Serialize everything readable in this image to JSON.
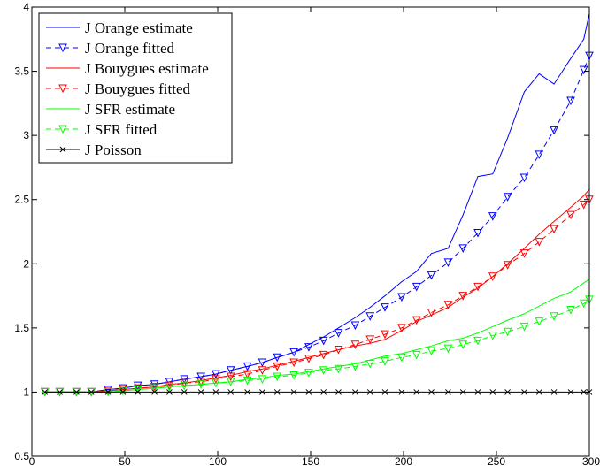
{
  "chart_data": {
    "type": "line",
    "title": "",
    "xlabel": "",
    "ylabel": "",
    "xlim": [
      0,
      300
    ],
    "ylim": [
      0.5,
      4
    ],
    "xticks": [
      0,
      50,
      100,
      150,
      200,
      250,
      300
    ],
    "yticks": [
      0.5,
      1,
      1.5,
      2,
      2.5,
      3,
      3.5,
      4
    ],
    "xtick_labels": [
      "0",
      "50",
      "100",
      "150",
      "200",
      "250",
      "300"
    ],
    "ytick_labels": [
      "0.5",
      "1",
      "1.5",
      "2",
      "2.5",
      "3",
      "3.5",
      "4"
    ],
    "grid": false,
    "legend_position": "top-left",
    "series": [
      {
        "name": "J Orange estimate",
        "color": "#0000ff",
        "line": "solid",
        "marker": "none",
        "x": [
          7,
          15,
          24,
          32,
          41,
          49,
          57,
          66,
          74,
          82,
          91,
          99,
          107,
          116,
          124,
          132,
          141,
          149,
          157,
          165,
          174,
          182,
          190,
          199,
          207,
          215,
          224,
          232,
          240,
          248,
          256,
          265,
          273,
          281,
          290,
          297,
          300
        ],
        "y": [
          1.0,
          1.0,
          1.0,
          1.0,
          1.02,
          1.03,
          1.05,
          1.06,
          1.08,
          1.1,
          1.12,
          1.14,
          1.17,
          1.2,
          1.23,
          1.27,
          1.31,
          1.37,
          1.43,
          1.5,
          1.58,
          1.66,
          1.75,
          1.86,
          1.94,
          2.08,
          2.12,
          2.38,
          2.68,
          2.7,
          2.98,
          3.34,
          3.48,
          3.4,
          3.6,
          3.75,
          3.95
        ]
      },
      {
        "name": "J Orange fitted",
        "color": "#0000ff",
        "line": "dashed",
        "marker": "triangle-down",
        "x": [
          7,
          15,
          24,
          32,
          41,
          49,
          57,
          66,
          74,
          82,
          91,
          99,
          107,
          116,
          124,
          132,
          141,
          149,
          157,
          165,
          174,
          182,
          190,
          199,
          207,
          215,
          224,
          232,
          240,
          248,
          256,
          265,
          273,
          281,
          290,
          297,
          300
        ],
        "y": [
          1.0,
          1.0,
          1.0,
          1.0,
          1.02,
          1.03,
          1.05,
          1.06,
          1.08,
          1.1,
          1.12,
          1.14,
          1.17,
          1.2,
          1.23,
          1.27,
          1.31,
          1.35,
          1.4,
          1.46,
          1.52,
          1.59,
          1.66,
          1.74,
          1.82,
          1.91,
          2.01,
          2.12,
          2.24,
          2.37,
          2.52,
          2.67,
          2.85,
          3.04,
          3.27,
          3.51,
          3.62
        ]
      },
      {
        "name": "J Bouygues estimate",
        "color": "#ff0000",
        "line": "solid",
        "marker": "none",
        "x": [
          7,
          15,
          24,
          32,
          41,
          49,
          57,
          66,
          74,
          82,
          91,
          99,
          107,
          116,
          124,
          132,
          141,
          149,
          157,
          165,
          174,
          182,
          190,
          199,
          207,
          215,
          224,
          232,
          240,
          248,
          256,
          265,
          273,
          281,
          290,
          297,
          300
        ],
        "y": [
          1.0,
          1.0,
          1.0,
          1.0,
          1.01,
          1.02,
          1.03,
          1.04,
          1.06,
          1.07,
          1.09,
          1.11,
          1.13,
          1.16,
          1.18,
          1.21,
          1.24,
          1.27,
          1.3,
          1.33,
          1.36,
          1.38,
          1.41,
          1.48,
          1.55,
          1.6,
          1.66,
          1.74,
          1.81,
          1.9,
          2.0,
          2.12,
          2.23,
          2.33,
          2.44,
          2.53,
          2.58
        ]
      },
      {
        "name": "J Bouygues fitted",
        "color": "#ff0000",
        "line": "dashed",
        "marker": "triangle-down",
        "x": [
          7,
          15,
          24,
          32,
          41,
          49,
          57,
          66,
          74,
          82,
          91,
          99,
          107,
          116,
          124,
          132,
          141,
          149,
          157,
          165,
          174,
          182,
          190,
          199,
          207,
          215,
          224,
          232,
          240,
          248,
          256,
          265,
          273,
          281,
          290,
          297,
          300
        ],
        "y": [
          1.0,
          1.0,
          1.0,
          1.0,
          1.01,
          1.02,
          1.03,
          1.04,
          1.05,
          1.07,
          1.08,
          1.1,
          1.12,
          1.14,
          1.17,
          1.2,
          1.23,
          1.26,
          1.29,
          1.33,
          1.37,
          1.41,
          1.45,
          1.5,
          1.56,
          1.62,
          1.68,
          1.75,
          1.82,
          1.9,
          1.99,
          2.08,
          2.17,
          2.27,
          2.38,
          2.46,
          2.5
        ]
      },
      {
        "name": "J SFR estimate",
        "color": "#00ff00",
        "line": "solid",
        "marker": "none",
        "x": [
          7,
          15,
          24,
          32,
          41,
          49,
          57,
          66,
          74,
          82,
          91,
          99,
          107,
          116,
          124,
          132,
          141,
          149,
          157,
          165,
          174,
          182,
          190,
          199,
          207,
          215,
          224,
          232,
          240,
          248,
          256,
          265,
          273,
          281,
          290,
          297,
          300
        ],
        "y": [
          1.0,
          1.0,
          1.0,
          1.0,
          1.0,
          1.01,
          1.02,
          1.03,
          1.04,
          1.05,
          1.06,
          1.07,
          1.08,
          1.1,
          1.11,
          1.13,
          1.14,
          1.16,
          1.18,
          1.2,
          1.22,
          1.25,
          1.28,
          1.3,
          1.33,
          1.36,
          1.4,
          1.42,
          1.46,
          1.51,
          1.56,
          1.61,
          1.67,
          1.73,
          1.78,
          1.85,
          1.88
        ]
      },
      {
        "name": "J SFR fitted",
        "color": "#00ff00",
        "line": "dashed",
        "marker": "triangle-down",
        "x": [
          7,
          15,
          24,
          32,
          41,
          49,
          57,
          66,
          74,
          82,
          91,
          99,
          107,
          116,
          124,
          132,
          141,
          149,
          157,
          165,
          174,
          182,
          190,
          199,
          207,
          215,
          224,
          232,
          240,
          248,
          256,
          265,
          273,
          281,
          290,
          297,
          300
        ],
        "y": [
          1.0,
          1.0,
          1.0,
          1.0,
          1.0,
          1.01,
          1.02,
          1.03,
          1.04,
          1.05,
          1.06,
          1.07,
          1.08,
          1.09,
          1.1,
          1.12,
          1.13,
          1.15,
          1.17,
          1.18,
          1.2,
          1.22,
          1.24,
          1.27,
          1.29,
          1.32,
          1.34,
          1.37,
          1.4,
          1.44,
          1.47,
          1.51,
          1.55,
          1.59,
          1.64,
          1.69,
          1.72
        ]
      },
      {
        "name": "J Poisson",
        "color": "#000000",
        "line": "solid",
        "marker": "x",
        "x": [
          7,
          15,
          24,
          32,
          41,
          49,
          57,
          66,
          74,
          82,
          91,
          99,
          107,
          116,
          124,
          132,
          141,
          149,
          157,
          165,
          174,
          182,
          190,
          199,
          207,
          215,
          224,
          232,
          240,
          248,
          256,
          265,
          273,
          281,
          290,
          297,
          300
        ],
        "y": [
          1,
          1,
          1,
          1,
          1,
          1,
          1,
          1,
          1,
          1,
          1,
          1,
          1,
          1,
          1,
          1,
          1,
          1,
          1,
          1,
          1,
          1,
          1,
          1,
          1,
          1,
          1,
          1,
          1,
          1,
          1,
          1,
          1,
          1,
          1,
          1,
          1
        ]
      }
    ]
  }
}
